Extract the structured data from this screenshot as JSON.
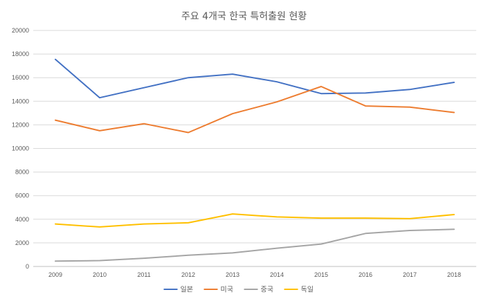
{
  "chart_data": {
    "type": "line",
    "title": "주요 4개국 한국 특허출원 현황",
    "xlabel": "",
    "ylabel": "",
    "categories": [
      "2009",
      "2010",
      "2011",
      "2012",
      "2013",
      "2014",
      "2015",
      "2016",
      "2017",
      "2018"
    ],
    "ylim": [
      0,
      20000
    ],
    "yticks": [
      0,
      2000,
      4000,
      6000,
      8000,
      10000,
      12000,
      14000,
      16000,
      18000,
      20000
    ],
    "grid": true,
    "legend": "bottom",
    "series": [
      {
        "name": "일본",
        "color": "#4472c4",
        "values": [
          17550,
          14300,
          15150,
          16000,
          16300,
          15650,
          14650,
          14700,
          15000,
          15600
        ]
      },
      {
        "name": "미국",
        "color": "#ed7d31",
        "values": [
          12400,
          11500,
          12100,
          11350,
          12950,
          13950,
          15250,
          13600,
          13500,
          13050
        ]
      },
      {
        "name": "중국",
        "color": "#a5a5a5",
        "values": [
          450,
          500,
          700,
          950,
          1150,
          1550,
          1900,
          2800,
          3050,
          3150
        ]
      },
      {
        "name": "독일",
        "color": "#ffc000",
        "values": [
          3600,
          3350,
          3600,
          3700,
          4450,
          4200,
          4100,
          4100,
          4050,
          4400
        ]
      }
    ]
  }
}
